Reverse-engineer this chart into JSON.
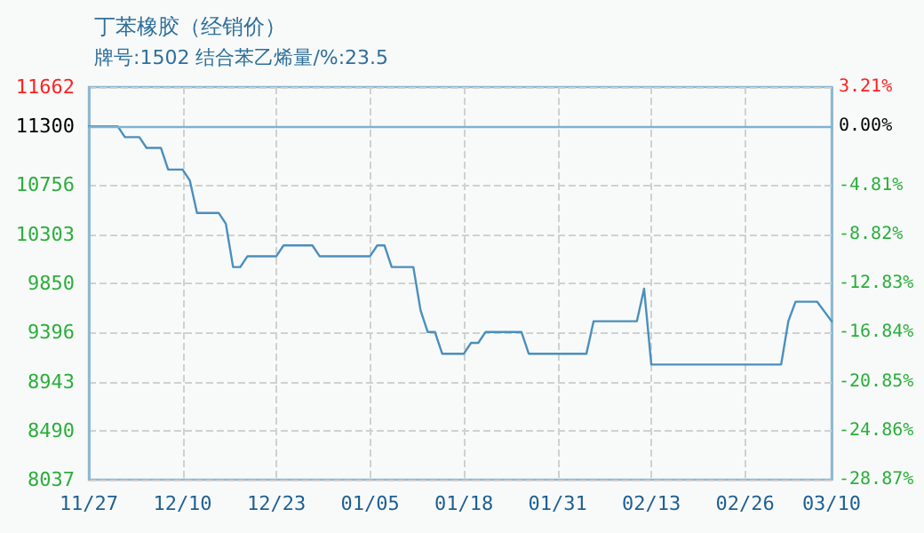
{
  "chart_data": {
    "type": "line",
    "title": "丁苯橡胶（经销价）",
    "subtitle": "牌号:1502 结合苯乙烯量/%:23.5",
    "categories": [
      "11/27",
      null,
      null,
      null,
      null,
      null,
      null,
      null,
      null,
      null,
      null,
      null,
      null,
      "12/10",
      null,
      null,
      null,
      null,
      null,
      null,
      null,
      null,
      null,
      null,
      null,
      null,
      "12/23",
      null,
      null,
      null,
      null,
      null,
      null,
      null,
      null,
      null,
      null,
      null,
      null,
      "01/05",
      null,
      null,
      null,
      null,
      null,
      null,
      null,
      null,
      null,
      null,
      null,
      null,
      "01/18",
      null,
      null,
      null,
      null,
      null,
      null,
      null,
      null,
      null,
      null,
      null,
      null,
      "01/31",
      null,
      null,
      null,
      null,
      null,
      null,
      null,
      null,
      null,
      null,
      null,
      null,
      "02/13",
      null,
      null,
      null,
      null,
      null,
      null,
      null,
      null,
      null,
      null,
      null,
      null,
      "02/26",
      null,
      null,
      null,
      null,
      null,
      null,
      null,
      null,
      null,
      null,
      null,
      "03/10"
    ],
    "series": [
      {
        "color": "#4a8fbc",
        "values": [
          11300,
          11300,
          11300,
          11300,
          11300,
          11200,
          11200,
          11200,
          11100,
          11100,
          11100,
          10900,
          10900,
          10900,
          10800,
          10500,
          10500,
          10500,
          10500,
          10400,
          10000,
          10000,
          10100,
          10100,
          10100,
          10100,
          10100,
          10200,
          10200,
          10200,
          10200,
          10200,
          10100,
          10100,
          10100,
          10100,
          10100,
          10100,
          10100,
          10100,
          10200,
          10200,
          10000,
          10000,
          10000,
          10000,
          9600,
          9400,
          9400,
          9200,
          9200,
          9200,
          9200,
          9300,
          9300,
          9400,
          9400,
          9400,
          9400,
          9400,
          9400,
          9200,
          9200,
          9200,
          9200,
          9200,
          9200,
          9200,
          9200,
          9200,
          9500,
          9500,
          9500,
          9500,
          9500,
          9500,
          9500,
          9800,
          9100,
          9100,
          9100,
          9100,
          9100,
          9100,
          9100,
          9100,
          9100,
          9100,
          9100,
          9100,
          9100,
          9100,
          9100,
          9100,
          9100,
          9100,
          9100,
          9500,
          9680,
          9680,
          9680,
          9680,
          9590,
          9500
        ]
      }
    ],
    "ylim": [
      8037,
      11662
    ],
    "yticks": [
      8037,
      8490,
      8943,
      9396,
      9850,
      10303,
      10756,
      11300,
      11662
    ],
    "y2lim": [
      -28.87,
      3.21
    ],
    "y2ticks": [
      {
        "value": -28.87,
        "label": "-28.87%"
      },
      {
        "value": -24.86,
        "label": "-24.86%"
      },
      {
        "value": -20.85,
        "label": "-20.85%"
      },
      {
        "value": -16.84,
        "label": "-16.84%"
      },
      {
        "value": -12.83,
        "label": "-12.83%"
      },
      {
        "value": -8.82,
        "label": "-8.82%"
      },
      {
        "value": -4.81,
        "label": "-4.81%"
      },
      {
        "value": 0,
        "label": "0.00%"
      },
      {
        "value": 3.21,
        "label": "3.21%"
      }
    ],
    "ref_lines": [
      {
        "axis": "y",
        "value": 11300,
        "color": "#7fb2d2"
      }
    ],
    "grid": true,
    "marker": "none",
    "line_style": "solid"
  }
}
